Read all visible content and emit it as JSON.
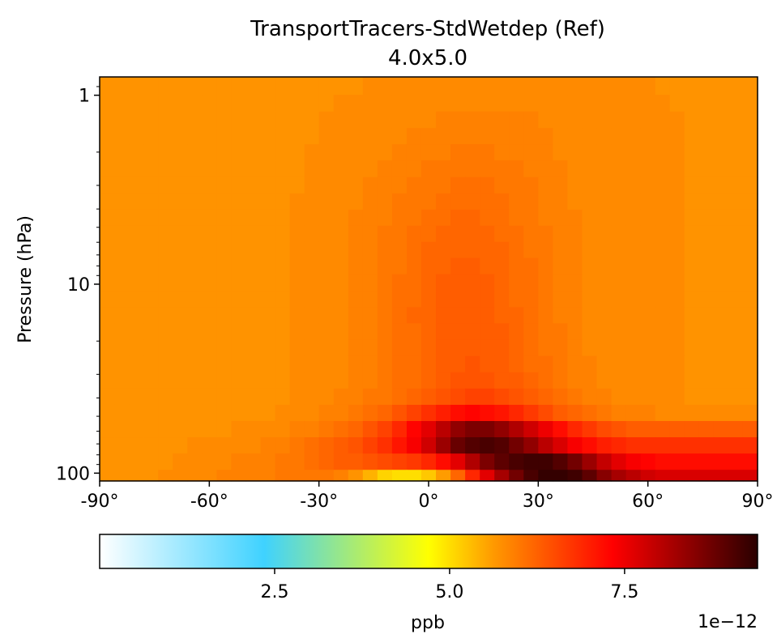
{
  "chart_data": {
    "type": "heatmap",
    "title": "TransportTracers-StdWetdep (Ref)",
    "subtitle": "4.0x5.0",
    "xlabel": "",
    "ylabel": "Pressure (hPa)",
    "x_ticks": [
      "-90°",
      "-60°",
      "-30°",
      "0°",
      "30°",
      "60°",
      "90°"
    ],
    "x_tick_values": [
      -90,
      -60,
      -30,
      0,
      30,
      60,
      90
    ],
    "xlim": [
      -90,
      90
    ],
    "y_scale": "log",
    "y_ticks": [
      "1",
      "10",
      "100"
    ],
    "y_tick_values": [
      1,
      10,
      100
    ],
    "ylim": [
      110,
      0.8
    ],
    "grid": false,
    "colormap": [
      "#ffffff",
      "#3fd2ff",
      "#ffff00",
      "#ff9800",
      "#ff0000",
      "#2a0000"
    ],
    "colorbar": {
      "label": "ppb",
      "scale_label": "1e−12",
      "ticks": [
        "2.5",
        "5.0",
        "7.5"
      ],
      "tick_values": [
        2.5,
        5.0,
        7.5
      ],
      "range": [
        0.0,
        9.4
      ]
    },
    "latitudes": [
      -88,
      -84,
      -80,
      -76,
      -72,
      -68,
      -64,
      -60,
      -56,
      -52,
      -48,
      -44,
      -40,
      -36,
      -32,
      -28,
      -24,
      -20,
      -16,
      -12,
      -8,
      -4,
      0,
      4,
      8,
      12,
      16,
      20,
      24,
      28,
      32,
      36,
      40,
      44,
      48,
      52,
      56,
      60,
      64,
      68,
      72,
      76,
      80,
      84,
      88
    ],
    "pressure_levels_hpa": [
      0.9,
      1.1,
      1.35,
      1.65,
      2.0,
      2.45,
      3.0,
      3.65,
      4.45,
      5.4,
      6.6,
      8.0,
      9.8,
      12.0,
      14.6,
      17.8,
      21.7,
      26.5,
      32.3,
      39.4,
      48.0,
      58.5,
      71.3,
      87.0,
      106.0
    ],
    "values": [
      [
        5.7,
        5.7,
        5.7,
        5.7,
        5.7,
        5.7,
        5.7,
        5.7,
        5.7,
        5.7,
        5.7,
        5.7,
        5.7,
        5.7,
        5.7,
        5.7,
        5.7,
        5.7,
        5.8,
        5.8,
        5.8,
        5.8,
        5.8,
        5.8,
        5.8,
        5.8,
        5.8,
        5.8,
        5.8,
        5.8,
        5.8,
        5.8,
        5.8,
        5.8,
        5.8,
        5.8,
        5.8,
        5.8,
        5.7,
        5.7,
        5.7,
        5.7,
        5.7,
        5.7,
        5.7
      ],
      [
        5.7,
        5.7,
        5.7,
        5.7,
        5.7,
        5.7,
        5.7,
        5.7,
        5.7,
        5.7,
        5.7,
        5.7,
        5.7,
        5.7,
        5.7,
        5.7,
        5.8,
        5.8,
        5.8,
        5.8,
        5.8,
        5.8,
        5.8,
        5.8,
        5.8,
        5.8,
        5.8,
        5.8,
        5.8,
        5.8,
        5.8,
        5.8,
        5.8,
        5.8,
        5.8,
        5.8,
        5.8,
        5.8,
        5.8,
        5.7,
        5.7,
        5.7,
        5.7,
        5.7,
        5.7
      ],
      [
        5.7,
        5.7,
        5.7,
        5.7,
        5.7,
        5.7,
        5.7,
        5.7,
        5.7,
        5.7,
        5.7,
        5.7,
        5.7,
        5.7,
        5.7,
        5.8,
        5.8,
        5.8,
        5.8,
        5.8,
        5.8,
        5.8,
        5.8,
        5.9,
        5.9,
        5.9,
        5.9,
        5.9,
        5.9,
        5.9,
        5.8,
        5.8,
        5.8,
        5.8,
        5.8,
        5.8,
        5.8,
        5.8,
        5.8,
        5.8,
        5.7,
        5.7,
        5.7,
        5.7,
        5.7
      ],
      [
        5.7,
        5.7,
        5.7,
        5.7,
        5.7,
        5.7,
        5.7,
        5.7,
        5.7,
        5.7,
        5.7,
        5.7,
        5.7,
        5.7,
        5.7,
        5.8,
        5.8,
        5.8,
        5.8,
        5.8,
        5.8,
        5.9,
        5.9,
        5.9,
        5.9,
        5.9,
        5.9,
        5.9,
        5.9,
        5.9,
        5.9,
        5.8,
        5.8,
        5.8,
        5.8,
        5.8,
        5.8,
        5.8,
        5.8,
        5.8,
        5.7,
        5.7,
        5.7,
        5.7,
        5.7
      ],
      [
        5.7,
        5.7,
        5.7,
        5.7,
        5.7,
        5.7,
        5.7,
        5.7,
        5.7,
        5.7,
        5.7,
        5.7,
        5.7,
        5.7,
        5.8,
        5.8,
        5.8,
        5.8,
        5.8,
        5.8,
        5.9,
        5.9,
        5.9,
        5.9,
        6.0,
        6.0,
        6.0,
        5.9,
        5.9,
        5.9,
        5.9,
        5.8,
        5.8,
        5.8,
        5.8,
        5.8,
        5.8,
        5.8,
        5.8,
        5.8,
        5.7,
        5.7,
        5.7,
        5.7,
        5.7
      ],
      [
        5.7,
        5.7,
        5.7,
        5.7,
        5.7,
        5.7,
        5.7,
        5.7,
        5.7,
        5.7,
        5.7,
        5.7,
        5.7,
        5.7,
        5.8,
        5.8,
        5.8,
        5.8,
        5.8,
        5.9,
        5.9,
        5.9,
        6.0,
        6.0,
        6.0,
        6.0,
        6.0,
        6.0,
        6.0,
        5.9,
        5.9,
        5.9,
        5.8,
        5.8,
        5.8,
        5.8,
        5.8,
        5.8,
        5.8,
        5.8,
        5.7,
        5.7,
        5.7,
        5.7,
        5.7
      ],
      [
        5.7,
        5.7,
        5.7,
        5.7,
        5.7,
        5.7,
        5.7,
        5.7,
        5.7,
        5.7,
        5.7,
        5.7,
        5.7,
        5.7,
        5.8,
        5.8,
        5.8,
        5.8,
        5.9,
        5.9,
        5.9,
        6.0,
        6.0,
        6.0,
        6.1,
        6.1,
        6.1,
        6.0,
        6.0,
        6.0,
        5.9,
        5.9,
        5.8,
        5.8,
        5.8,
        5.8,
        5.8,
        5.8,
        5.8,
        5.8,
        5.7,
        5.7,
        5.7,
        5.7,
        5.7
      ],
      [
        5.7,
        5.7,
        5.7,
        5.7,
        5.7,
        5.7,
        5.7,
        5.7,
        5.7,
        5.7,
        5.7,
        5.7,
        5.7,
        5.8,
        5.8,
        5.8,
        5.8,
        5.8,
        5.9,
        5.9,
        6.0,
        6.0,
        6.0,
        6.1,
        6.1,
        6.1,
        6.1,
        6.1,
        6.0,
        6.0,
        5.9,
        5.9,
        5.8,
        5.8,
        5.8,
        5.8,
        5.8,
        5.8,
        5.8,
        5.8,
        5.7,
        5.7,
        5.7,
        5.7,
        5.7
      ],
      [
        5.7,
        5.7,
        5.7,
        5.7,
        5.7,
        5.7,
        5.7,
        5.7,
        5.7,
        5.7,
        5.7,
        5.7,
        5.7,
        5.8,
        5.8,
        5.8,
        5.8,
        5.9,
        5.9,
        5.9,
        6.0,
        6.0,
        6.1,
        6.1,
        6.2,
        6.2,
        6.1,
        6.1,
        6.0,
        6.0,
        5.9,
        5.9,
        5.9,
        5.8,
        5.8,
        5.8,
        5.8,
        5.8,
        5.8,
        5.8,
        5.7,
        5.7,
        5.7,
        5.7,
        5.7
      ],
      [
        5.7,
        5.7,
        5.7,
        5.7,
        5.7,
        5.7,
        5.7,
        5.7,
        5.7,
        5.7,
        5.7,
        5.7,
        5.7,
        5.8,
        5.8,
        5.8,
        5.8,
        5.9,
        5.9,
        6.0,
        6.0,
        6.1,
        6.1,
        6.2,
        6.2,
        6.2,
        6.2,
        6.1,
        6.1,
        6.0,
        6.0,
        5.9,
        5.9,
        5.8,
        5.8,
        5.8,
        5.8,
        5.8,
        5.8,
        5.8,
        5.7,
        5.7,
        5.7,
        5.7,
        5.7
      ],
      [
        5.7,
        5.7,
        5.7,
        5.7,
        5.7,
        5.7,
        5.7,
        5.7,
        5.7,
        5.7,
        5.7,
        5.7,
        5.7,
        5.8,
        5.8,
        5.8,
        5.8,
        5.9,
        5.9,
        6.0,
        6.0,
        6.1,
        6.2,
        6.2,
        6.2,
        6.2,
        6.2,
        6.2,
        6.1,
        6.0,
        6.0,
        5.9,
        5.9,
        5.8,
        5.8,
        5.8,
        5.8,
        5.8,
        5.8,
        5.8,
        5.7,
        5.7,
        5.7,
        5.7,
        5.7
      ],
      [
        5.7,
        5.7,
        5.7,
        5.7,
        5.7,
        5.7,
        5.7,
        5.7,
        5.7,
        5.7,
        5.7,
        5.7,
        5.7,
        5.8,
        5.8,
        5.8,
        5.8,
        5.9,
        5.9,
        6.0,
        6.0,
        6.1,
        6.2,
        6.2,
        6.3,
        6.3,
        6.2,
        6.2,
        6.1,
        6.1,
        6.0,
        5.9,
        5.9,
        5.8,
        5.8,
        5.8,
        5.8,
        5.8,
        5.8,
        5.8,
        5.7,
        5.7,
        5.7,
        5.7,
        5.7
      ],
      [
        5.7,
        5.7,
        5.7,
        5.7,
        5.7,
        5.7,
        5.7,
        5.7,
        5.7,
        5.7,
        5.7,
        5.7,
        5.7,
        5.8,
        5.8,
        5.8,
        5.8,
        5.9,
        5.9,
        6.0,
        6.1,
        6.1,
        6.2,
        6.3,
        6.3,
        6.3,
        6.3,
        6.2,
        6.1,
        6.1,
        6.0,
        5.9,
        5.9,
        5.8,
        5.8,
        5.8,
        5.8,
        5.8,
        5.8,
        5.8,
        5.7,
        5.7,
        5.7,
        5.7,
        5.7
      ],
      [
        5.7,
        5.7,
        5.7,
        5.7,
        5.7,
        5.7,
        5.7,
        5.7,
        5.7,
        5.7,
        5.7,
        5.7,
        5.7,
        5.8,
        5.8,
        5.8,
        5.8,
        5.9,
        5.9,
        6.0,
        6.1,
        6.1,
        6.2,
        6.3,
        6.3,
        6.3,
        6.3,
        6.2,
        6.1,
        6.1,
        6.0,
        5.9,
        5.9,
        5.8,
        5.8,
        5.8,
        5.8,
        5.8,
        5.8,
        5.8,
        5.7,
        5.7,
        5.7,
        5.7,
        5.7
      ],
      [
        5.7,
        5.7,
        5.7,
        5.7,
        5.7,
        5.7,
        5.7,
        5.7,
        5.7,
        5.7,
        5.7,
        5.7,
        5.7,
        5.8,
        5.8,
        5.8,
        5.8,
        5.9,
        5.9,
        6.0,
        6.1,
        6.2,
        6.2,
        6.3,
        6.3,
        6.3,
        6.3,
        6.2,
        6.2,
        6.1,
        6.0,
        5.9,
        5.9,
        5.8,
        5.8,
        5.8,
        5.8,
        5.8,
        5.8,
        5.8,
        5.7,
        5.7,
        5.7,
        5.7,
        5.7
      ],
      [
        5.7,
        5.7,
        5.7,
        5.7,
        5.7,
        5.7,
        5.7,
        5.7,
        5.7,
        5.7,
        5.7,
        5.7,
        5.7,
        5.8,
        5.8,
        5.8,
        5.8,
        5.9,
        5.9,
        6.0,
        6.1,
        6.1,
        6.2,
        6.3,
        6.3,
        6.3,
        6.3,
        6.3,
        6.2,
        6.1,
        6.0,
        6.0,
        5.9,
        5.8,
        5.8,
        5.8,
        5.8,
        5.8,
        5.8,
        5.8,
        5.7,
        5.7,
        5.7,
        5.7,
        5.7
      ],
      [
        5.7,
        5.7,
        5.7,
        5.7,
        5.7,
        5.7,
        5.7,
        5.7,
        5.7,
        5.7,
        5.7,
        5.7,
        5.7,
        5.8,
        5.8,
        5.8,
        5.8,
        5.9,
        5.9,
        6.0,
        6.1,
        6.1,
        6.2,
        6.3,
        6.3,
        6.3,
        6.3,
        6.3,
        6.2,
        6.1,
        6.0,
        6.0,
        5.9,
        5.8,
        5.8,
        5.8,
        5.8,
        5.8,
        5.8,
        5.8,
        5.7,
        5.7,
        5.7,
        5.7,
        5.7
      ],
      [
        5.7,
        5.7,
        5.7,
        5.7,
        5.7,
        5.7,
        5.7,
        5.7,
        5.7,
        5.7,
        5.7,
        5.7,
        5.7,
        5.8,
        5.8,
        5.8,
        5.8,
        5.9,
        5.9,
        6.0,
        6.1,
        6.1,
        6.2,
        6.3,
        6.3,
        6.4,
        6.3,
        6.3,
        6.2,
        6.1,
        6.1,
        6.0,
        5.9,
        5.9,
        5.8,
        5.8,
        5.8,
        5.8,
        5.8,
        5.8,
        5.7,
        5.7,
        5.7,
        5.7,
        5.7
      ],
      [
        5.7,
        5.7,
        5.7,
        5.7,
        5.7,
        5.7,
        5.7,
        5.7,
        5.7,
        5.7,
        5.7,
        5.7,
        5.7,
        5.8,
        5.8,
        5.8,
        5.8,
        5.9,
        5.9,
        6.0,
        6.1,
        6.1,
        6.2,
        6.3,
        6.4,
        6.4,
        6.4,
        6.3,
        6.3,
        6.2,
        6.1,
        6.0,
        5.9,
        5.9,
        5.8,
        5.8,
        5.8,
        5.8,
        5.8,
        5.8,
        5.7,
        5.7,
        5.7,
        5.7,
        5.7
      ],
      [
        5.7,
        5.7,
        5.7,
        5.7,
        5.7,
        5.7,
        5.7,
        5.7,
        5.7,
        5.7,
        5.7,
        5.7,
        5.7,
        5.8,
        5.8,
        5.8,
        5.9,
        5.9,
        6.0,
        6.0,
        6.1,
        6.2,
        6.3,
        6.4,
        6.5,
        6.6,
        6.6,
        6.5,
        6.4,
        6.3,
        6.2,
        6.1,
        6.0,
        5.9,
        5.9,
        5.8,
        5.8,
        5.8,
        5.8,
        5.8,
        5.7,
        5.7,
        5.7,
        5.7,
        5.7
      ],
      [
        5.7,
        5.7,
        5.7,
        5.7,
        5.7,
        5.7,
        5.7,
        5.7,
        5.7,
        5.7,
        5.7,
        5.7,
        5.8,
        5.8,
        5.8,
        5.9,
        5.9,
        6.0,
        6.1,
        6.2,
        6.4,
        6.6,
        6.8,
        7.0,
        7.2,
        7.3,
        7.2,
        7.1,
        6.9,
        6.7,
        6.5,
        6.3,
        6.2,
        6.1,
        6.0,
        5.9,
        5.9,
        5.9,
        5.8,
        5.8,
        5.8,
        5.8,
        5.8,
        5.8,
        5.8
      ],
      [
        5.7,
        5.7,
        5.7,
        5.7,
        5.7,
        5.7,
        5.7,
        5.7,
        5.7,
        5.8,
        5.8,
        5.8,
        5.8,
        5.9,
        5.9,
        6.0,
        6.1,
        6.2,
        6.4,
        6.6,
        6.9,
        7.3,
        7.6,
        8.0,
        8.4,
        8.6,
        8.6,
        8.4,
        8.1,
        7.8,
        7.5,
        7.2,
        6.9,
        6.7,
        6.5,
        6.4,
        6.3,
        6.3,
        6.3,
        6.3,
        6.3,
        6.3,
        6.3,
        6.3,
        6.3
      ],
      [
        5.7,
        5.7,
        5.7,
        5.7,
        5.7,
        5.7,
        5.8,
        5.8,
        5.8,
        5.8,
        5.8,
        5.9,
        5.9,
        6.0,
        6.1,
        6.2,
        6.3,
        6.4,
        6.6,
        6.8,
        7.1,
        7.4,
        7.8,
        8.3,
        8.8,
        9.0,
        9.1,
        9.0,
        8.7,
        8.4,
        8.0,
        7.7,
        7.4,
        7.2,
        7.0,
        6.9,
        6.8,
        6.8,
        6.8,
        6.8,
        6.8,
        6.8,
        6.8,
        6.8,
        6.8
      ],
      [
        5.7,
        5.7,
        5.7,
        5.7,
        5.7,
        5.8,
        5.8,
        5.8,
        5.8,
        5.9,
        5.9,
        5.9,
        6.0,
        6.0,
        6.1,
        6.2,
        6.3,
        6.3,
        6.4,
        6.5,
        6.6,
        6.7,
        6.9,
        7.2,
        7.6,
        8.1,
        8.6,
        8.9,
        9.1,
        9.2,
        9.2,
        9.0,
        8.7,
        8.3,
        7.9,
        7.6,
        7.4,
        7.3,
        7.2,
        7.2,
        7.2,
        7.2,
        7.2,
        7.2,
        7.2
      ],
      [
        5.7,
        5.7,
        5.7,
        5.7,
        5.8,
        5.8,
        5.8,
        5.8,
        5.9,
        5.9,
        5.9,
        5.9,
        6.0,
        6.0,
        6.0,
        6.0,
        5.9,
        5.7,
        5.4,
        5.1,
        5.0,
        5.0,
        5.2,
        5.6,
        6.2,
        6.9,
        7.6,
        8.2,
        8.7,
        9.1,
        9.3,
        9.3,
        9.2,
        8.9,
        8.5,
        8.2,
        8.0,
        7.8,
        7.7,
        7.7,
        7.7,
        7.7,
        7.7,
        7.7,
        7.7
      ]
    ]
  }
}
